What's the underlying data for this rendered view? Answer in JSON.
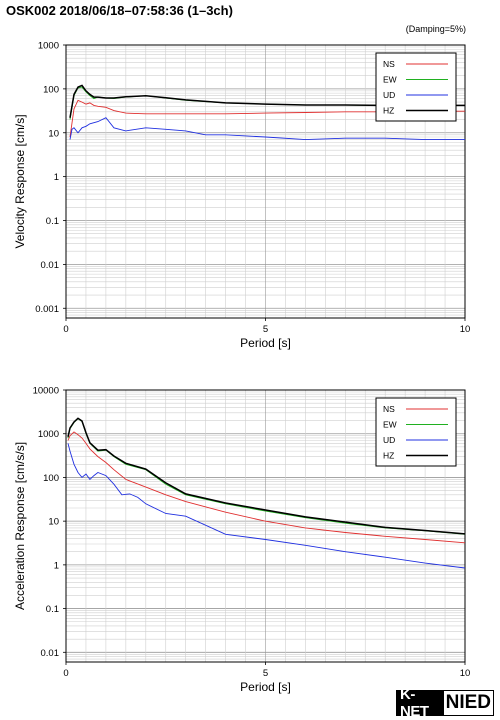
{
  "page_title": "OSK002 2018/06/18–07:58:36 (1–3ch)",
  "damping_note": "(Damping=5%)",
  "logo": {
    "left": "K-NET",
    "right": "NIED"
  },
  "colors": {
    "NS": "#e03030",
    "EW": "#20b020",
    "UD": "#2030e0",
    "HZ": "#000000"
  },
  "chart_data": [
    {
      "type": "line",
      "ylabel": "Velocity Response [cm/s]",
      "xlabel": "Period [s]",
      "xlim": [
        0,
        10
      ],
      "x_ticks": [
        0,
        5,
        10
      ],
      "ylim": [
        0.0006,
        1000
      ],
      "y_scale": "log",
      "y_ticks": [
        "0.001",
        "0.01",
        "0.1",
        "1",
        "10",
        "100",
        "1000"
      ],
      "grid": true,
      "legend_position": "top-right",
      "series": [
        {
          "name": "NS",
          "x": [
            0.1,
            0.2,
            0.3,
            0.4,
            0.5,
            0.6,
            0.7,
            0.8,
            1.0,
            1.2,
            1.5,
            2,
            3,
            4,
            5,
            6,
            7,
            8,
            9,
            10
          ],
          "values": [
            8,
            35,
            55,
            50,
            45,
            48,
            42,
            40,
            38,
            32,
            28,
            27,
            27,
            27,
            28,
            29,
            30,
            30,
            31,
            31
          ]
        },
        {
          "name": "EW",
          "x": [
            0.1,
            0.2,
            0.3,
            0.4,
            0.5,
            0.6,
            0.7,
            0.8,
            1.0,
            1.2,
            1.5,
            2,
            2.5,
            3,
            4,
            5,
            6,
            7,
            8,
            9,
            10
          ],
          "values": [
            20,
            70,
            105,
            110,
            85,
            70,
            60,
            65,
            62,
            60,
            65,
            70,
            62,
            55,
            48,
            45,
            43,
            43,
            42,
            42,
            42
          ]
        },
        {
          "name": "UD",
          "x": [
            0.1,
            0.15,
            0.2,
            0.3,
            0.4,
            0.5,
            0.6,
            0.8,
            1.0,
            1.2,
            1.5,
            2,
            2.5,
            3,
            3.5,
            4,
            5,
            6,
            7,
            8,
            9,
            10
          ],
          "values": [
            7,
            12,
            13,
            10,
            13,
            14,
            16,
            18,
            22,
            13,
            11,
            13,
            12,
            11,
            9,
            9,
            8,
            7,
            7.5,
            7.5,
            7,
            7
          ]
        },
        {
          "name": "HZ",
          "x": [
            0.1,
            0.2,
            0.3,
            0.4,
            0.5,
            0.6,
            0.7,
            0.8,
            1.0,
            1.2,
            1.5,
            2,
            2.5,
            3,
            4,
            5,
            6,
            7,
            8,
            9,
            10
          ],
          "values": [
            22,
            75,
            110,
            120,
            90,
            75,
            65,
            65,
            62,
            62,
            66,
            70,
            63,
            56,
            48,
            45,
            43,
            43,
            42,
            42,
            42
          ]
        }
      ]
    },
    {
      "type": "line",
      "ylabel": "Acceleration Response [cm/s/s]",
      "xlabel": "Period [s]",
      "xlim": [
        0,
        10
      ],
      "x_ticks": [
        0,
        5,
        10
      ],
      "ylim": [
        0.006,
        10000
      ],
      "y_scale": "log",
      "y_ticks": [
        "0.01",
        "0.1",
        "1",
        "10",
        "100",
        "1000",
        "10000"
      ],
      "grid": true,
      "legend_position": "top-right",
      "series": [
        {
          "name": "NS",
          "x": [
            0.05,
            0.1,
            0.2,
            0.3,
            0.4,
            0.5,
            0.6,
            0.8,
            1.0,
            1.2,
            1.5,
            2,
            2.5,
            3,
            4,
            5,
            6,
            7,
            8,
            9,
            10
          ],
          "values": [
            700,
            900,
            1100,
            950,
            800,
            600,
            450,
            300,
            220,
            150,
            90,
            60,
            40,
            28,
            16,
            10,
            7,
            5.5,
            4.5,
            3.8,
            3.2
          ]
        },
        {
          "name": "EW",
          "x": [
            0.05,
            0.1,
            0.2,
            0.3,
            0.4,
            0.5,
            0.6,
            0.8,
            1.0,
            1.2,
            1.5,
            2,
            2.5,
            3,
            4,
            5,
            6,
            7,
            8,
            9,
            10
          ],
          "values": [
            800,
            1300,
            1800,
            2200,
            1900,
            1000,
            600,
            400,
            420,
            300,
            200,
            150,
            70,
            40,
            25,
            17,
            12,
            9,
            7,
            6,
            5
          ]
        },
        {
          "name": "UD",
          "x": [
            0.05,
            0.1,
            0.2,
            0.3,
            0.4,
            0.5,
            0.6,
            0.7,
            0.8,
            1.0,
            1.2,
            1.4,
            1.6,
            1.8,
            2,
            2.5,
            3,
            4,
            5,
            6,
            7,
            8,
            9,
            10
          ],
          "values": [
            600,
            400,
            200,
            130,
            100,
            120,
            90,
            110,
            130,
            110,
            70,
            40,
            42,
            35,
            25,
            15,
            13,
            5,
            3.8,
            2.8,
            2,
            1.5,
            1.1,
            0.85
          ]
        },
        {
          "name": "HZ",
          "x": [
            0.05,
            0.1,
            0.2,
            0.3,
            0.4,
            0.5,
            0.6,
            0.8,
            1.0,
            1.2,
            1.5,
            2,
            2.5,
            3,
            4,
            5,
            6,
            7,
            8,
            9,
            10
          ],
          "values": [
            850,
            1350,
            1850,
            2250,
            1950,
            1050,
            620,
            420,
            430,
            310,
            210,
            155,
            75,
            42,
            26,
            18,
            12.5,
            9.5,
            7.2,
            6.1,
            5.1
          ]
        }
      ]
    }
  ]
}
